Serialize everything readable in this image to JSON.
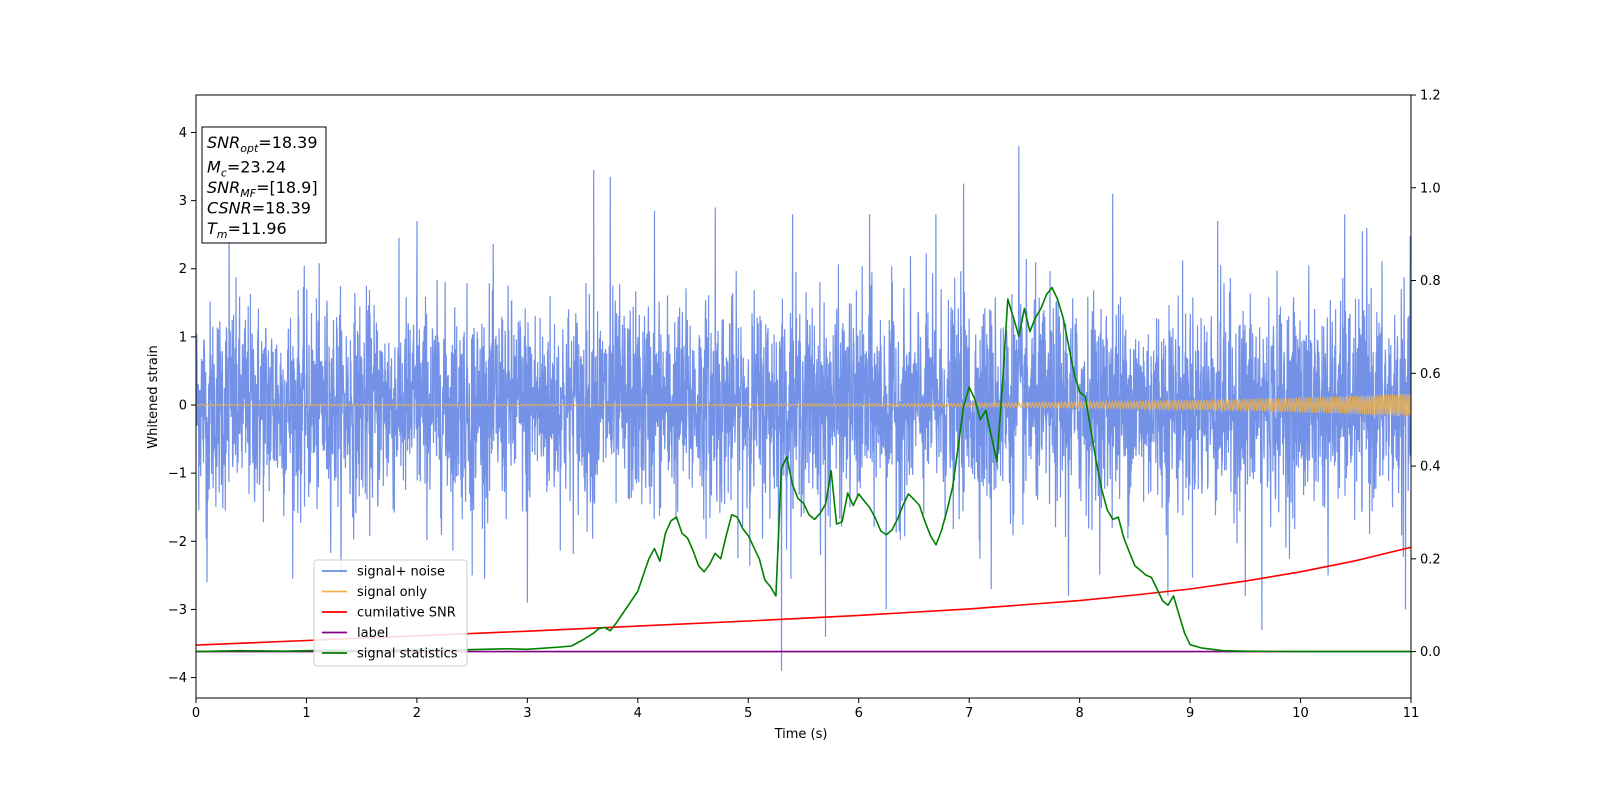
{
  "chart_data": {
    "type": "line",
    "xlabel": "Time (s)",
    "ylabel": "Whitened strain",
    "xlim": [
      0,
      11
    ],
    "ylim": [
      -4.3,
      4.55
    ],
    "ylim_right": [
      -0.1,
      1.2
    ],
    "x_ticks": [
      0,
      1,
      2,
      3,
      4,
      5,
      6,
      7,
      8,
      9,
      10,
      11
    ],
    "y_ticks": [
      -4,
      -3,
      -2,
      -1,
      0,
      1,
      2,
      3,
      4
    ],
    "y_ticks_right": [
      0.0,
      0.2,
      0.4,
      0.6,
      0.8,
      1.0,
      1.2
    ],
    "x_tick_labels": [
      "0",
      "1",
      "2",
      "3",
      "4",
      "5",
      "6",
      "7",
      "8",
      "9",
      "10",
      "11"
    ],
    "y_tick_labels": [
      "−4",
      "−3",
      "−2",
      "−1",
      "0",
      "1",
      "2",
      "3",
      "4"
    ],
    "y_tick_labels_right": [
      "0.0",
      "0.2",
      "0.4",
      "0.6",
      "0.8",
      "1.0",
      "1.2"
    ],
    "grid": false,
    "legend_position": "lower-left",
    "annotation": {
      "lines": [
        {
          "sym": "SNR",
          "sub": "opt",
          "value": "=18.39"
        },
        {
          "sym": "M",
          "sub": "c",
          "value": "=23.24"
        },
        {
          "sym": "SNR",
          "sub": "MF",
          "value": "=[18.9]"
        },
        {
          "sym": "CSNR",
          "sub": "",
          "value": "=18.39"
        },
        {
          "sym": "T",
          "sub": "m",
          "value": "=11.96"
        }
      ]
    },
    "series": [
      {
        "name": "signal+ noise",
        "color": "#6a8be6",
        "axis": "left",
        "kind": "noise",
        "std": 0.75,
        "x_range": [
          0,
          11
        ],
        "spikes": [
          [
            0.3,
            2.8
          ],
          [
            0.1,
            -2.6
          ],
          [
            2.0,
            2.7
          ],
          [
            2.5,
            -2.5
          ],
          [
            3.0,
            -2.9
          ],
          [
            3.6,
            3.45
          ],
          [
            3.75,
            3.35
          ],
          [
            4.15,
            2.85
          ],
          [
            4.7,
            2.9
          ],
          [
            5.3,
            -3.9
          ],
          [
            5.4,
            2.8
          ],
          [
            5.7,
            -3.4
          ],
          [
            6.1,
            2.8
          ],
          [
            6.25,
            -3.0
          ],
          [
            6.7,
            2.8
          ],
          [
            6.95,
            3.25
          ],
          [
            7.45,
            3.8
          ],
          [
            7.2,
            -2.7
          ],
          [
            7.9,
            -2.8
          ],
          [
            8.3,
            3.1
          ],
          [
            8.8,
            -2.8
          ],
          [
            9.25,
            2.7
          ],
          [
            9.5,
            -2.8
          ],
          [
            9.65,
            -3.3
          ],
          [
            10.25,
            -2.5
          ],
          [
            10.4,
            2.8
          ],
          [
            10.95,
            -3.0
          ],
          [
            10.6,
            2.6
          ]
        ]
      },
      {
        "name": "signal only",
        "color": "#f0b24a",
        "axis": "left",
        "kind": "chirp",
        "amplitude_start": 0.012,
        "amplitude_end": 0.17,
        "x_range": [
          0,
          11
        ]
      },
      {
        "name": "cumilative SNR",
        "color": "#ff0000",
        "axis": "right",
        "x": [
          0,
          1,
          2,
          3,
          4,
          5,
          6,
          7,
          8,
          8.5,
          9,
          9.5,
          10,
          10.5,
          11
        ],
        "y": [
          0.014,
          0.024,
          0.034,
          0.044,
          0.055,
          0.066,
          0.078,
          0.092,
          0.11,
          0.122,
          0.135,
          0.152,
          0.172,
          0.196,
          0.225
        ]
      },
      {
        "name": "label",
        "color": "#800080",
        "axis": "right",
        "x": [
          0,
          11
        ],
        "y": [
          0.0,
          0.0
        ]
      },
      {
        "name": "signal statistics",
        "color": "#008000",
        "axis": "right",
        "x": [
          0,
          0.4,
          0.8,
          1.2,
          1.6,
          2.0,
          2.4,
          2.8,
          3.0,
          3.3,
          3.4,
          3.5,
          3.6,
          3.65,
          3.7,
          3.75,
          3.8,
          3.9,
          4.0,
          4.1,
          4.15,
          4.2,
          4.25,
          4.3,
          4.35,
          4.4,
          4.45,
          4.5,
          4.55,
          4.6,
          4.65,
          4.7,
          4.75,
          4.8,
          4.85,
          4.9,
          4.95,
          5.0,
          5.05,
          5.1,
          5.15,
          5.2,
          5.25,
          5.3,
          5.35,
          5.4,
          5.45,
          5.5,
          5.55,
          5.6,
          5.65,
          5.7,
          5.75,
          5.8,
          5.85,
          5.9,
          5.95,
          6.0,
          6.05,
          6.1,
          6.15,
          6.2,
          6.25,
          6.3,
          6.35,
          6.4,
          6.45,
          6.5,
          6.55,
          6.6,
          6.65,
          6.7,
          6.75,
          6.8,
          6.85,
          6.9,
          6.95,
          7.0,
          7.05,
          7.1,
          7.15,
          7.2,
          7.25,
          7.3,
          7.35,
          7.4,
          7.45,
          7.5,
          7.55,
          7.6,
          7.65,
          7.7,
          7.75,
          7.8,
          7.85,
          7.9,
          7.95,
          8.0,
          8.05,
          8.1,
          8.15,
          8.2,
          8.25,
          8.3,
          8.35,
          8.4,
          8.45,
          8.5,
          8.55,
          8.6,
          8.65,
          8.7,
          8.75,
          8.8,
          8.85,
          8.9,
          8.95,
          9.0,
          9.1,
          9.2,
          9.3,
          9.5,
          10.0,
          10.5,
          11.0
        ],
        "y": [
          0.0,
          0.002,
          0.001,
          0.003,
          0.002,
          0.005,
          0.004,
          0.006,
          0.005,
          0.01,
          0.012,
          0.025,
          0.04,
          0.05,
          0.052,
          0.045,
          0.06,
          0.095,
          0.13,
          0.2,
          0.222,
          0.195,
          0.255,
          0.282,
          0.29,
          0.255,
          0.245,
          0.218,
          0.185,
          0.172,
          0.188,
          0.212,
          0.2,
          0.25,
          0.295,
          0.29,
          0.265,
          0.25,
          0.225,
          0.2,
          0.155,
          0.14,
          0.12,
          0.395,
          0.42,
          0.36,
          0.33,
          0.32,
          0.295,
          0.285,
          0.298,
          0.318,
          0.39,
          0.275,
          0.28,
          0.342,
          0.315,
          0.34,
          0.325,
          0.31,
          0.288,
          0.26,
          0.252,
          0.262,
          0.285,
          0.315,
          0.34,
          0.328,
          0.315,
          0.28,
          0.25,
          0.23,
          0.262,
          0.305,
          0.355,
          0.44,
          0.53,
          0.57,
          0.545,
          0.5,
          0.52,
          0.465,
          0.41,
          0.57,
          0.76,
          0.72,
          0.68,
          0.74,
          0.69,
          0.72,
          0.74,
          0.77,
          0.785,
          0.76,
          0.72,
          0.66,
          0.6,
          0.56,
          0.55,
          0.48,
          0.41,
          0.35,
          0.305,
          0.285,
          0.29,
          0.245,
          0.215,
          0.185,
          0.175,
          0.165,
          0.16,
          0.135,
          0.11,
          0.1,
          0.12,
          0.08,
          0.04,
          0.015,
          0.008,
          0.005,
          0.002,
          0.001,
          0.0,
          0.0,
          0.0
        ]
      }
    ]
  }
}
